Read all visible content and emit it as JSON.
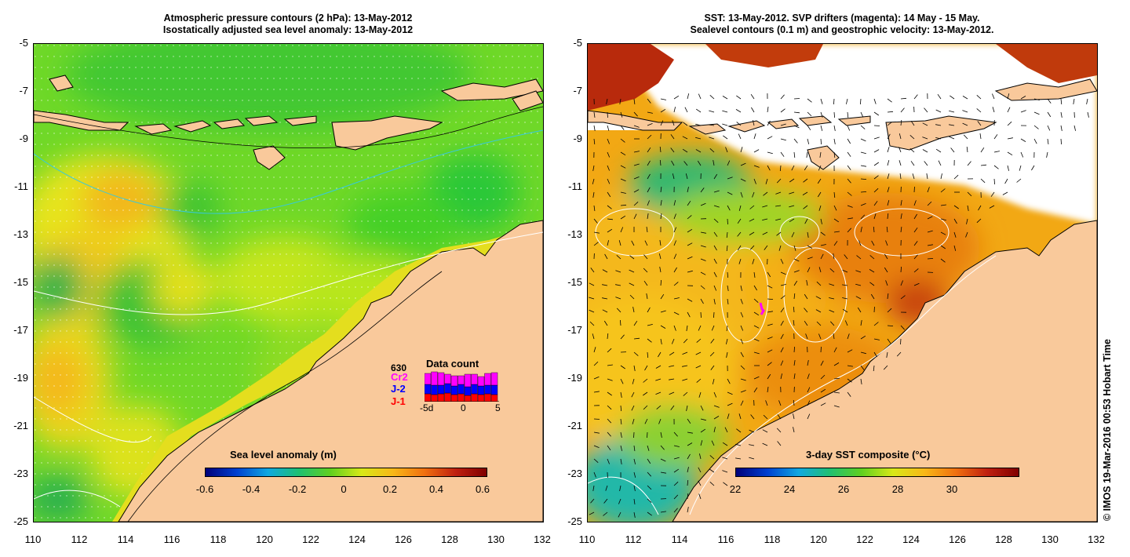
{
  "left_panel": {
    "title_line1": "Atmospheric pressure contours (2 hPa): 13-May-2012",
    "title_line2": "Isostatically adjusted sea level anomaly: 13-May-2012",
    "colorbar": {
      "title": "Sea level anomaly (m)",
      "ticks": [
        "-0.6",
        "-0.4",
        "-0.2",
        "0",
        "0.2",
        "0.4",
        "0.6"
      ]
    },
    "data_count": {
      "title": "Data count",
      "max_label": "630",
      "sources": [
        {
          "name": "Cr2",
          "color": "#ff00ff"
        },
        {
          "name": "J-2",
          "color": "#0000ff"
        },
        {
          "name": "J-1",
          "color": "#ff0000"
        }
      ],
      "axis_ticks": [
        "-5d",
        "0",
        "5"
      ]
    }
  },
  "right_panel": {
    "title_line1": "SST: 13-May-2012. SVP drifters (magenta): 14 May - 15 May.",
    "title_line2": "Sealevel contours (0.1 m) and geostrophic velocity: 13-May-2012.",
    "colorbar": {
      "title": "3-day SST composite (°C)",
      "ticks": [
        "22",
        "24",
        "26",
        "28",
        "30"
      ]
    }
  },
  "axes": {
    "lat_ticks": [
      "-5",
      "-7",
      "-9",
      "-11",
      "-13",
      "-15",
      "-17",
      "-19",
      "-21",
      "-23",
      "-25"
    ],
    "lon_ticks": [
      "110",
      "112",
      "114",
      "116",
      "118",
      "120",
      "122",
      "124",
      "126",
      "128",
      "130",
      "132"
    ]
  },
  "credit": "© IMOS 19-Mar-2016 00:53 Hobart Time",
  "colors": {
    "land": "#f9c99b",
    "ssl_green": "#55d22a",
    "ssl_yellow": "#d8ea1e",
    "sst_orange": "#f2a814",
    "sst_dark": "#d8560c",
    "cloud": "#ffffff",
    "cold_blue": "#22b8d8"
  }
}
